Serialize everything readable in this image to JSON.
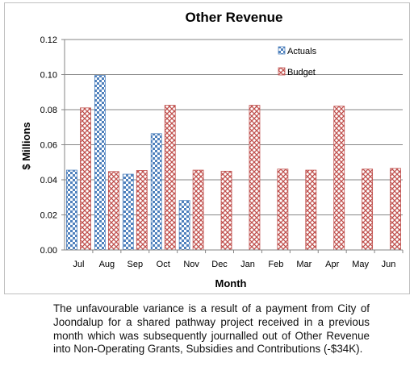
{
  "chart_data": {
    "type": "bar",
    "title": "Other Revenue",
    "xlabel": "Month",
    "ylabel": "$ Millions",
    "ylim": [
      0,
      0.12
    ],
    "yticks": [
      "0.00",
      "0.02",
      "0.04",
      "0.06",
      "0.08",
      "0.10",
      "0.12"
    ],
    "grid": true,
    "legend_position": "top-right",
    "categories": [
      "Jul",
      "Aug",
      "Sep",
      "Oct",
      "Nov",
      "Dec",
      "Jan",
      "Feb",
      "Mar",
      "Apr",
      "May",
      "Jun"
    ],
    "series": [
      {
        "name": "Actuals",
        "color": "#4f81bd",
        "pattern": "checker",
        "values": [
          0.0455,
          0.0995,
          0.0432,
          0.0663,
          0.0282,
          null,
          null,
          null,
          null,
          null,
          null,
          null
        ]
      },
      {
        "name": "Budget",
        "color": "#c0504d",
        "pattern": "diagonal-cross",
        "values": [
          0.081,
          0.0447,
          0.0453,
          0.0825,
          0.0455,
          0.0449,
          0.0825,
          0.0461,
          0.0455,
          0.082,
          0.0461,
          0.0465
        ]
      }
    ]
  },
  "caption": "The unfavourable variance is a result of a payment from City of Joondalup for a shared pathway project received in a previous month which was subsequently journalled out of Other Revenue into Non-Operating Grants, Subsidies and Contributions (-$34K)."
}
